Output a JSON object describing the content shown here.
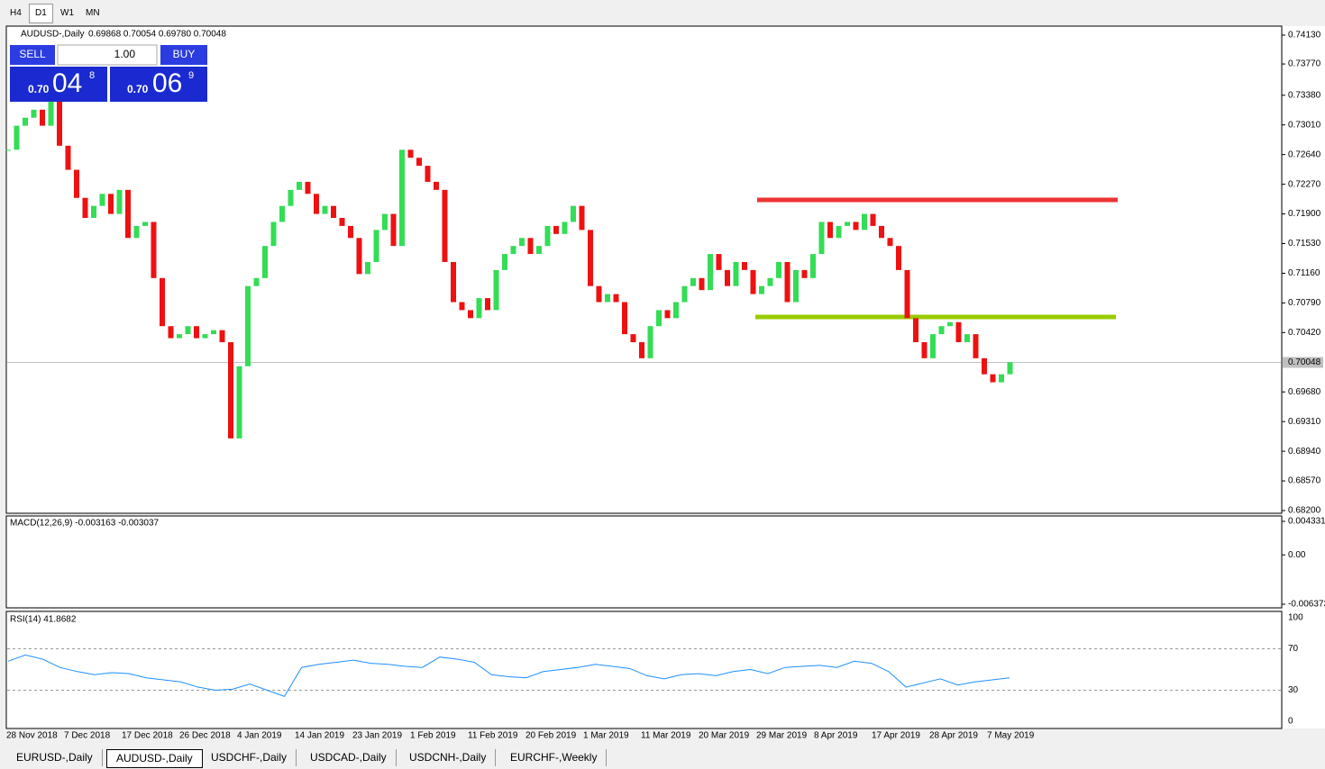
{
  "toolbar": {
    "timeframes": [
      "H4",
      "D1",
      "W1",
      "MN"
    ]
  },
  "chart_data": {
    "type": "candlestick",
    "title": "AUDUSD-,Daily",
    "header_values": "0.69868 0.70054 0.69780 0.70048",
    "close": [
      0.727,
      0.73,
      0.731,
      0.732,
      0.73,
      0.733,
      0.7275,
      0.7245,
      0.721,
      0.7185,
      0.72,
      0.7215,
      0.719,
      0.722,
      0.716,
      0.7175,
      0.718,
      0.711,
      0.705,
      0.7035,
      0.704,
      0.705,
      0.7035,
      0.704,
      0.7045,
      0.703,
      0.691,
      0.7,
      0.71,
      0.711,
      0.715,
      0.718,
      0.72,
      0.722,
      0.723,
      0.7215,
      0.719,
      0.72,
      0.7185,
      0.7175,
      0.716,
      0.7115,
      0.713,
      0.717,
      0.719,
      0.715,
      0.727,
      0.726,
      0.725,
      0.723,
      0.722,
      0.713,
      0.708,
      0.707,
      0.706,
      0.7085,
      0.707,
      0.712,
      0.714,
      0.715,
      0.716,
      0.714,
      0.715,
      0.7175,
      0.7165,
      0.718,
      0.72,
      0.717,
      0.71,
      0.708,
      0.709,
      0.708,
      0.704,
      0.703,
      0.701,
      0.705,
      0.707,
      0.706,
      0.708,
      0.71,
      0.711,
      0.7095,
      0.714,
      0.712,
      0.71,
      0.713,
      0.712,
      0.709,
      0.71,
      0.711,
      0.713,
      0.708,
      0.712,
      0.711,
      0.714,
      0.718,
      0.716,
      0.7175,
      0.718,
      0.717,
      0.719,
      0.7175,
      0.716,
      0.715,
      0.712,
      0.706,
      0.703,
      0.701,
      0.704,
      0.705,
      0.7055,
      0.703,
      0.704,
      0.701,
      0.699,
      0.698,
      0.699,
      0.7005
    ],
    "up_color": "#33dd55",
    "down_color": "#ee1111",
    "ylim": [
      0.682,
      0.7413
    ],
    "yticks": [
      {
        "value": 0.7413,
        "label": "0.74130"
      },
      {
        "value": 0.7377,
        "label": "0.73770"
      },
      {
        "value": 0.7338,
        "label": "0.73380"
      },
      {
        "value": 0.7301,
        "label": "0.73010"
      },
      {
        "value": 0.7264,
        "label": "0.72640"
      },
      {
        "value": 0.7227,
        "label": "0.72270"
      },
      {
        "value": 0.719,
        "label": "0.71900"
      },
      {
        "value": 0.7153,
        "label": "0.71530"
      },
      {
        "value": 0.7116,
        "label": "0.71160"
      },
      {
        "value": 0.7079,
        "label": "0.70790"
      },
      {
        "value": 0.7042,
        "label": "0.70420"
      },
      {
        "value": 0.6968,
        "label": "0.69680"
      },
      {
        "value": 0.6931,
        "label": "0.69310"
      },
      {
        "value": 0.6894,
        "label": "0.68940"
      },
      {
        "value": 0.6857,
        "label": "0.68570"
      },
      {
        "value": 0.682,
        "label": "0.68200"
      }
    ],
    "current_price": {
      "value": 0.70048,
      "label": "0.70048"
    },
    "resistance": 0.72075,
    "support": 0.70615,
    "date_labels": [
      "28 Nov 2018",
      "7 Dec 2018",
      "17 Dec 2018",
      "26 Dec 2018",
      "4 Jan 2019",
      "14 Jan 2019",
      "23 Jan 2019",
      "1 Feb 2019",
      "11 Feb 2019",
      "20 Feb 2019",
      "1 Mar 2019",
      "11 Mar 2019",
      "20 Mar 2019",
      "29 Mar 2019",
      "8 Apr 2019",
      "17 Apr 2019",
      "28 Apr 2019",
      "7 May 2019"
    ]
  },
  "trade_panel": {
    "sell": "SELL",
    "buy": "BUY",
    "lots": "1.00",
    "bid_prefix": "0.70",
    "bid_big": "04",
    "bid_small": "8",
    "ask_prefix": "0.70",
    "ask_big": "06",
    "ask_small": "9"
  },
  "macd": {
    "label": "MACD(12,26,9) -0.003163 -0.003037",
    "ylim": [
      -0.006373,
      0.004331
    ],
    "yticks": [
      {
        "value": 0.004331,
        "label": "0.004331"
      },
      {
        "value": 0,
        "label": "0.00"
      },
      {
        "value": -0.006373,
        "label": "-0.006373"
      }
    ]
  },
  "rsi": {
    "label": "RSI(14) 41.8682",
    "ylim": [
      0,
      100
    ],
    "yticks": [
      100,
      70,
      30,
      0
    ],
    "color": "#1e90ff",
    "values": [
      58,
      64,
      60,
      52,
      48,
      45,
      47,
      46,
      42,
      40,
      38,
      33,
      30,
      31,
      36,
      30,
      24,
      52,
      55,
      57,
      59,
      56,
      55,
      53,
      52,
      62,
      60,
      57,
      45,
      43,
      42,
      48,
      50,
      52,
      55,
      53,
      51,
      44,
      41,
      45,
      46,
      44,
      48,
      50,
      46,
      52,
      53,
      54,
      52,
      58,
      56,
      48,
      33,
      37,
      41,
      35,
      38,
      40,
      42
    ]
  },
  "tabs": [
    "EURUSD-,Daily",
    "AUDUSD-,Daily",
    "USDCHF-,Daily",
    "USDCAD-,Daily",
    "USDCNH-,Daily",
    "EURCHF-,Weekly"
  ]
}
